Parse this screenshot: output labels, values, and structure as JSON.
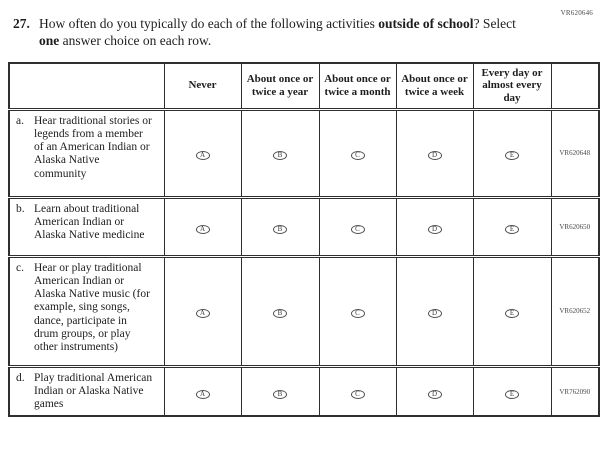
{
  "page_code": "VR620646",
  "question": {
    "number": "27.",
    "text_part1": "How often do you typically do each of the following activities ",
    "text_bold1": "outside of school",
    "text_part2": "? Select ",
    "text_bold2": "one",
    "text_part3": " answer choice on each row."
  },
  "table": {
    "column_headers": {
      "never": "Never",
      "year": "About once or twice a year",
      "month": "About once or twice a month",
      "week": "About once or twice a week",
      "everyday": "Every day or almost every day"
    },
    "option_letters": [
      "A",
      "B",
      "C",
      "D",
      "E"
    ],
    "rows": [
      {
        "item_letter": "a.",
        "label": "Hear traditional stories or legends from a member of an American Indian or Alaska Native community",
        "code": "VR620648"
      },
      {
        "item_letter": "b.",
        "label": "Learn about traditional American Indian or Alaska Native medicine",
        "code": "VR620650"
      },
      {
        "item_letter": "c.",
        "label": "Hear or play traditional American Indian or Alaska Native music (for example, sing songs, dance, participate in drum groups, or play other instruments)",
        "code": "VR620652"
      },
      {
        "item_letter": "d.",
        "label": "Play traditional American Indian or Alaska Native games",
        "code": "VR762090"
      }
    ]
  },
  "colors": {
    "text": "#1d1d1f",
    "border": "#2f2f2f",
    "code_text": "#4a4a4a"
  }
}
